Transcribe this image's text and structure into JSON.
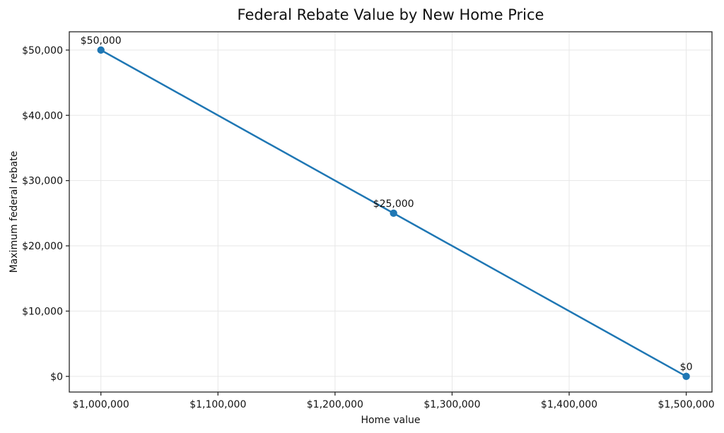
{
  "chart_data": {
    "type": "line",
    "title": "Federal Rebate Value by New Home Price",
    "xlabel": "Home value",
    "ylabel": "Maximum federal rebate",
    "x": [
      1000000,
      1250000,
      1500000
    ],
    "y": [
      50000,
      25000,
      0
    ],
    "point_labels": [
      "$50,000",
      "$25,000",
      "$0"
    ],
    "x_ticks": [
      1000000,
      1100000,
      1200000,
      1300000,
      1400000,
      1500000
    ],
    "x_tick_labels": [
      "$1,000,000",
      "$1,100,000",
      "$1,200,000",
      "$1,300,000",
      "$1,400,000",
      "$1,500,000"
    ],
    "y_ticks": [
      0,
      10000,
      20000,
      30000,
      40000,
      50000
    ],
    "y_tick_labels": [
      "$0",
      "$10,000",
      "$20,000",
      "$30,000",
      "$40,000",
      "$50,000"
    ],
    "xlim": [
      973000,
      1522000
    ],
    "ylim": [
      -2400,
      52800
    ],
    "grid": true,
    "legend": "none",
    "colors": {
      "line": "#1f77b4",
      "marker": "#1f77b4",
      "grid": "#e7e7e7",
      "spine": "#262626",
      "text": "#111111",
      "background": "#ffffff"
    }
  }
}
